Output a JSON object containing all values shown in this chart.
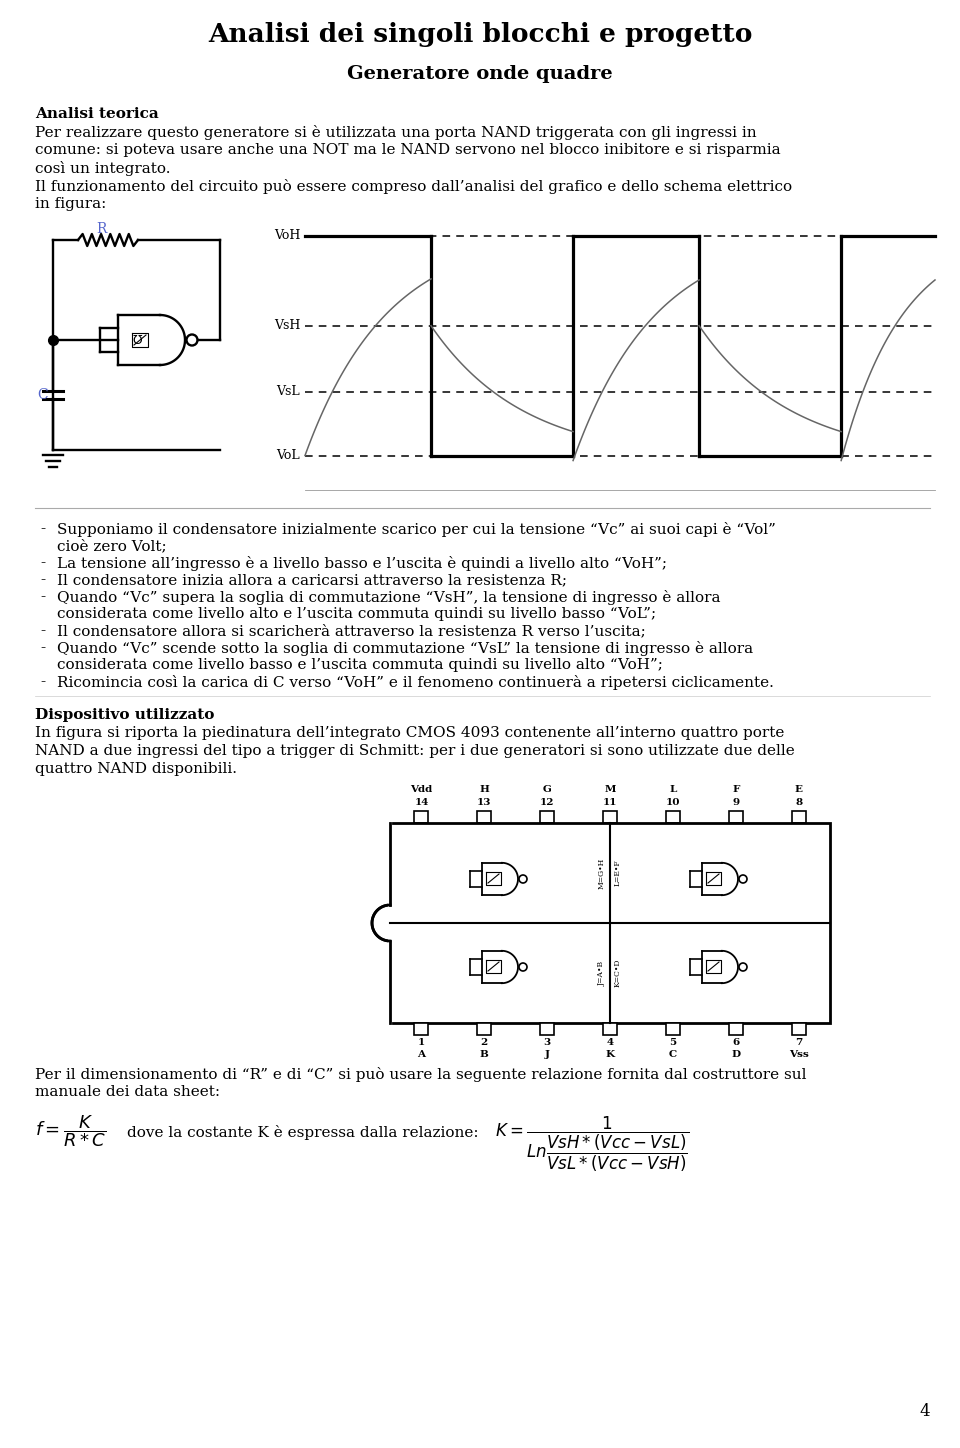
{
  "title": "Analisi dei singoli blocchi e progetto",
  "subtitle": "Generatore onde quadre",
  "bg_color": "#ffffff",
  "text_color": "#000000",
  "page_number": "4",
  "bullet_points": [
    "Supponiamo il condensatore inizialmente scarico per cui la tensione “Vc” ai suoi capi è “Vol”\ncioè zero Volt;",
    "La tensione all’ingresso è a livello basso e l’uscita è quindi a livello alto “VoH”;",
    "Il condensatore inizia allora a caricarsi attraverso la resistenza R;",
    "Quando “Vc” supera la soglia di commutazione “VsH”, la tensione di ingresso è allora\nconsiderata come livello alto e l’uscita commuta quindi su livello basso “VoL”;",
    "Il condensatore allora si scaricherà attraverso la resistenza R verso l’uscita;",
    "Quando “Vc” scende sotto la soglia di commutazione “VsL” la tensione di ingresso è allora\nconsiderata come livello basso e l’uscita commuta quindi su livello alto “VoH”;",
    "Ricomincia così la carica di C verso “VoH” e il fenomeno continuerà a ripetersi ciclicamente."
  ],
  "device_bold": "Dispositivo utilizzato",
  "device_lines": [
    "In figura si riporta la piedinatura dell’integrato CMOS 4093 contenente all’interno quattro porte",
    "NAND a due ingressi del tipo a trigger di Schmitt: per i due generatori si sono utilizzate due delle",
    "quattro NAND disponibili."
  ],
  "formula_lines": [
    "Per il dimensionamento di “R” e di “C” si può usare la seguente relazione fornita dal costruttore sul",
    "manuale dei data sheet:"
  ],
  "top_pins": [
    "Vdd\n14",
    "H\n13",
    "G\n12",
    "M\n11",
    "L\n10",
    "F\n9",
    "E\n8"
  ],
  "bot_pins": [
    "1\nA",
    "2\nB",
    "3\nJ",
    "4\nK",
    "5\nC",
    "6\nD",
    "7\nVss"
  ]
}
